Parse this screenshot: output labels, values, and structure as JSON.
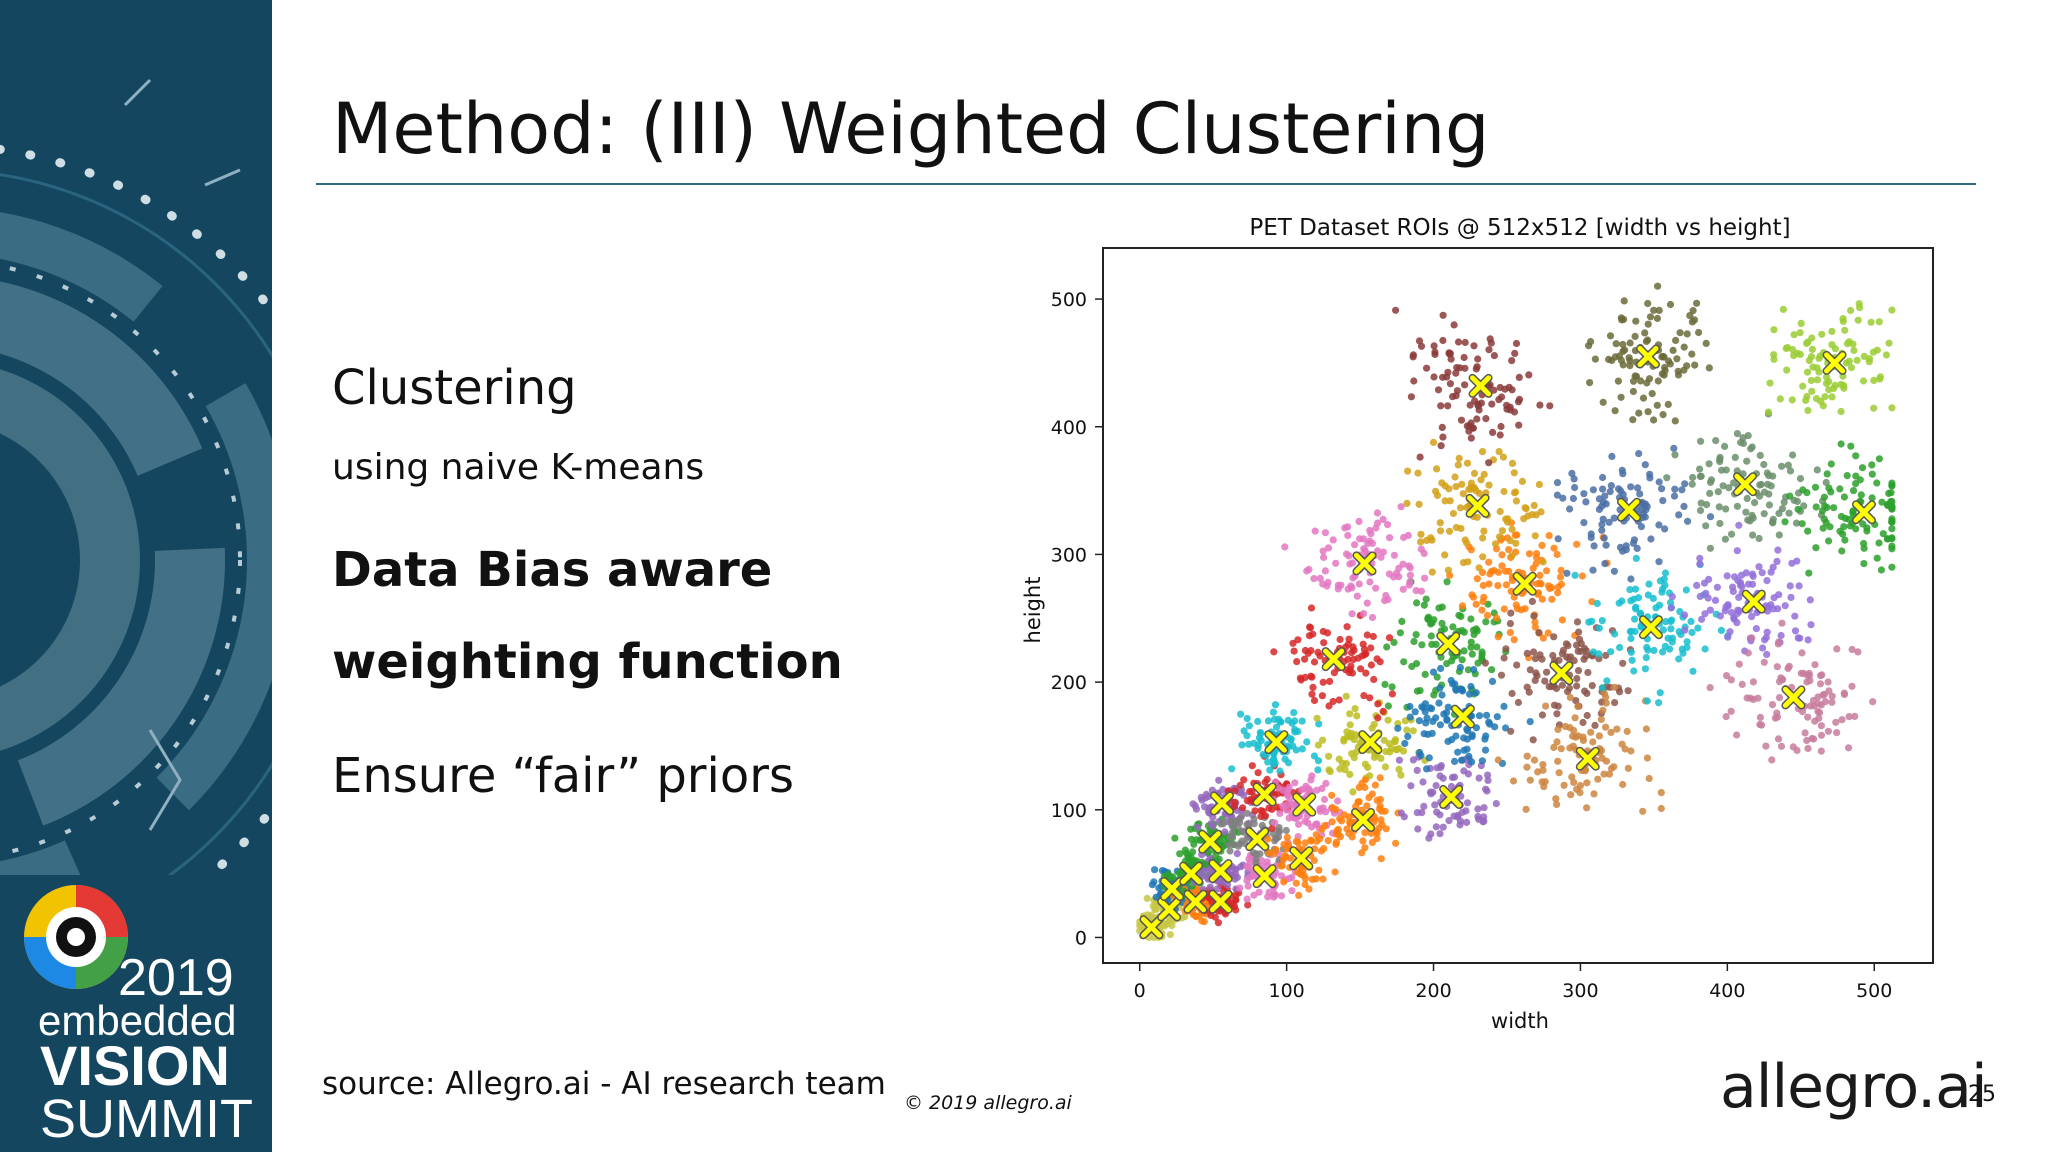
{
  "slide": {
    "title": "Method: (III) Weighted Clustering",
    "bullets": [
      "Clustering",
      "using naive K-means",
      "Data Bias aware",
      "weighting function",
      "Ensure “fair” priors"
    ],
    "source": "source: Allegro.ai - AI research team",
    "copyright": "© 2019 allegro.ai",
    "logo_text": "allegro.ai",
    "page_number": "25"
  },
  "event_logo": {
    "year": "2019",
    "line1": "embedded",
    "line2": "VISION",
    "line3": "SUMMIT"
  },
  "colors": {
    "sidebar": "#14475f",
    "title_rule": "#2f6b84",
    "centroid": "#ffff00"
  },
  "chart_data": {
    "type": "scatter",
    "title": "PET Dataset ROIs @ 512x512 [width vs height]",
    "xlabel": "width",
    "ylabel": "height",
    "xlim": [
      -25,
      540
    ],
    "ylim": [
      -20,
      540
    ],
    "xticks": [
      0,
      100,
      200,
      300,
      400,
      500
    ],
    "yticks": [
      0,
      100,
      200,
      300,
      400,
      500
    ],
    "grid": false,
    "clusters": [
      {
        "color": "#c8c845",
        "centroid": [
          8,
          8
        ]
      },
      {
        "color": "#c8c845",
        "centroid": [
          20,
          22
        ]
      },
      {
        "color": "#1f77b4",
        "centroid": [
          22,
          38
        ]
      },
      {
        "color": "#ff7f0e",
        "centroid": [
          38,
          28
        ]
      },
      {
        "color": "#2ca02c",
        "centroid": [
          35,
          50
        ]
      },
      {
        "color": "#d62728",
        "centroid": [
          55,
          28
        ]
      },
      {
        "color": "#9467bd",
        "centroid": [
          55,
          52
        ]
      },
      {
        "color": "#2ca02c",
        "centroid": [
          48,
          75
        ]
      },
      {
        "color": "#9467bd",
        "centroid": [
          56,
          105
        ]
      },
      {
        "color": "#e377c2",
        "centroid": [
          85,
          48
        ]
      },
      {
        "color": "#7f7f7f",
        "centroid": [
          80,
          77
        ]
      },
      {
        "color": "#d62728",
        "centroid": [
          85,
          112
        ]
      },
      {
        "color": "#e377c2",
        "centroid": [
          112,
          104
        ]
      },
      {
        "color": "#ff7f0e",
        "centroid": [
          110,
          62
        ]
      },
      {
        "color": "#17becf",
        "centroid": [
          93,
          153
        ]
      },
      {
        "color": "#bcbd22",
        "centroid": [
          157,
          153
        ]
      },
      {
        "color": "#ff7f0e",
        "centroid": [
          152,
          92
        ]
      },
      {
        "color": "#9467bd",
        "centroid": [
          212,
          110
        ]
      },
      {
        "color": "#d62728",
        "centroid": [
          132,
          218
        ]
      },
      {
        "color": "#2ca02c",
        "centroid": [
          210,
          230
        ]
      },
      {
        "color": "#1f77b4",
        "centroid": [
          220,
          173
        ]
      },
      {
        "color": "#e377c2",
        "centroid": [
          153,
          293
        ]
      },
      {
        "color": "#ff7f0e",
        "centroid": [
          262,
          277
        ]
      },
      {
        "color": "#d4a017",
        "centroid": [
          230,
          338
        ]
      },
      {
        "color": "#8c564b",
        "centroid": [
          287,
          207
        ]
      },
      {
        "color": "#cd853f",
        "centroid": [
          305,
          140
        ]
      },
      {
        "color": "#17becf",
        "centroid": [
          348,
          243
        ]
      },
      {
        "color": "#4a6fa5",
        "centroid": [
          333,
          335
        ]
      },
      {
        "color": "#9370db",
        "centroid": [
          418,
          263
        ]
      },
      {
        "color": "#c77c9e",
        "centroid": [
          445,
          188
        ]
      },
      {
        "color": "#6b8e6b",
        "centroid": [
          412,
          355
        ]
      },
      {
        "color": "#2ca02c",
        "centroid": [
          493,
          333
        ]
      },
      {
        "color": "#8b3a3a",
        "centroid": [
          232,
          432
        ]
      },
      {
        "color": "#6b6b3a",
        "centroid": [
          346,
          455
        ]
      },
      {
        "color": "#9acd32",
        "centroid": [
          473,
          450
        ]
      }
    ]
  }
}
